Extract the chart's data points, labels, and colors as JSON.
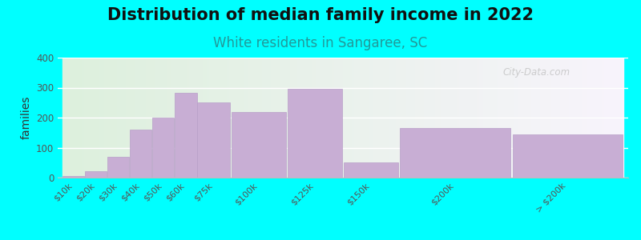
{
  "title": "Distribution of median family income in 2022",
  "subtitle": "White residents in Sangaree, SC",
  "ylabel": "families",
  "background_color": "#00FFFF",
  "bar_color": "#c8aed4",
  "bar_edgecolor": "#b8a0c8",
  "categories": [
    "$10k",
    "$20k",
    "$30k",
    "$40k",
    "$50k",
    "$60k",
    "$75k",
    "$100k",
    "$125k",
    "$150k",
    "$200k",
    "> $200k"
  ],
  "values": [
    5,
    22,
    70,
    160,
    200,
    283,
    250,
    220,
    295,
    50,
    165,
    145
  ],
  "left_edges": [
    0,
    10,
    20,
    30,
    40,
    50,
    60,
    75,
    100,
    125,
    150,
    200
  ],
  "widths": [
    10,
    10,
    10,
    10,
    10,
    10,
    15,
    25,
    25,
    25,
    50,
    50
  ],
  "ylim": [
    0,
    400
  ],
  "yticks": [
    0,
    100,
    200,
    300,
    400
  ],
  "watermark": "City-Data.com",
  "title_fontsize": 15,
  "subtitle_fontsize": 12,
  "ylabel_fontsize": 10
}
